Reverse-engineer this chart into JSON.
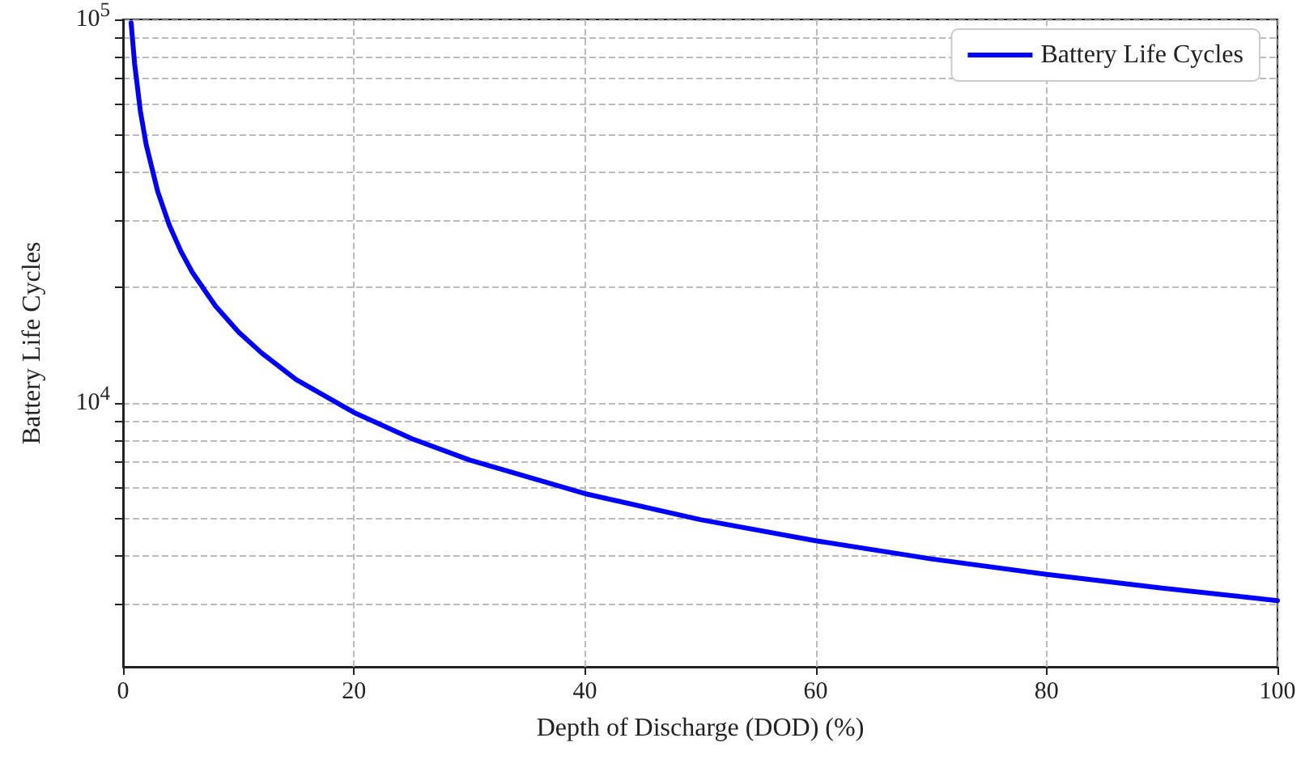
{
  "chart_data": {
    "type": "line",
    "xlabel": "Depth of Discharge (DOD) (%)",
    "ylabel": "Battery Life Cycles",
    "series": [
      {
        "name": "Battery Life Cycles",
        "color": "#0000ff",
        "x": [
          0.7,
          1,
          1.5,
          2,
          3,
          4,
          5,
          6,
          8,
          10,
          12,
          15,
          20,
          25,
          30,
          40,
          50,
          60,
          70,
          80,
          90,
          100
        ],
        "values": [
          98000,
          76700,
          57700,
          47200,
          35600,
          29100,
          24900,
          21900,
          17900,
          15300,
          13500,
          11500,
          9440,
          8070,
          7100,
          5800,
          4960,
          4370,
          3920,
          3570,
          3290,
          3050
        ]
      }
    ],
    "xlim": [
      0,
      100
    ],
    "xticks": [
      0,
      20,
      40,
      60,
      80,
      100
    ],
    "ylim": [
      2050,
      100000
    ],
    "yticks": [
      {
        "value": 3000,
        "label": null
      },
      {
        "value": 4000,
        "label": null
      },
      {
        "value": 5000,
        "label": null
      },
      {
        "value": 6000,
        "label": null
      },
      {
        "value": 7000,
        "label": null
      },
      {
        "value": 8000,
        "label": null
      },
      {
        "value": 9000,
        "label": null
      },
      {
        "value": 10000,
        "label": "10$^{4}$"
      },
      {
        "value": 20000,
        "label": null
      },
      {
        "value": 30000,
        "label": null
      },
      {
        "value": 40000,
        "label": null
      },
      {
        "value": 50000,
        "label": null
      },
      {
        "value": 60000,
        "label": null
      },
      {
        "value": 70000,
        "label": null
      },
      {
        "value": 80000,
        "label": null
      },
      {
        "value": 90000,
        "label": null
      },
      {
        "value": 100000,
        "label": "10$^{5}$"
      }
    ],
    "log": "y",
    "grid": true,
    "legend": "top right",
    "marker": "none",
    "line_style": "solid"
  }
}
